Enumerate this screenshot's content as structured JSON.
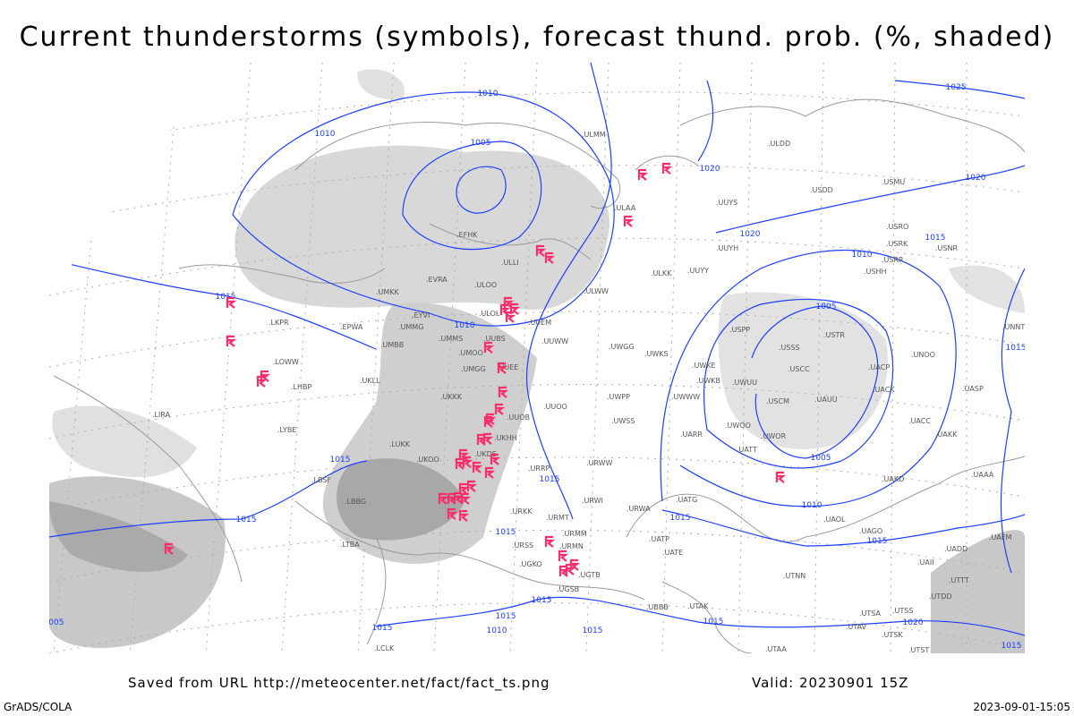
{
  "title": "Current thunderstorms (symbols), forecast thund. prob. (%, shaded)",
  "footer": {
    "saved_from": "Saved from URL http://meteocenter.net/fact/fact_ts.png",
    "valid": "Valid: 20230901 15Z",
    "software": "GrADS/COLA",
    "timestamp": "2023-09-01-15:05"
  },
  "colors": {
    "isobar": "#1f3fff",
    "thunderstorm_symbol": "#ff2d6a",
    "probability_shading": "#c8c8c8",
    "coastline": "#999999",
    "station_label": "#555555"
  },
  "legend": {
    "thunderstorm_icon": "thunderstorm-symbol-icon"
  },
  "isobar_labels": [
    "1010",
    "1010",
    "1005",
    "1025",
    "1020",
    "1020",
    "1020",
    "1015",
    "1010",
    "1010",
    "1015",
    "1005",
    "1005",
    "1010",
    "1015",
    "1015",
    "1015",
    "1015",
    "1015",
    "1015",
    "1015",
    "1015",
    "1010",
    "1015",
    "1015",
    "1015",
    "1020",
    "1015",
    "1005",
    "1015"
  ],
  "stations": [
    "EFHK",
    "ULMM",
    "ULOO",
    "ULLI",
    "ULAA",
    "ULDD",
    "UUYS",
    "USDD",
    "USMU",
    "UUYH",
    "USRO",
    "USRK",
    "USNR",
    "USRR",
    "USHH",
    "ULKK",
    "UUYY",
    "ULWW",
    "UUEM",
    "ULOL",
    "EVRA",
    "UMKK",
    "EYVI",
    "UMMG",
    "EPWA",
    "UMBB",
    "UMMS",
    "UMOO",
    "UUBS",
    "UUWW",
    "UWGG",
    "UWKS",
    "USPP",
    "USSS",
    "USTR",
    "UNOO",
    "UNNT",
    "UWKE",
    "UWKB",
    "UWUU",
    "USCC",
    "UACP",
    "UACK",
    "UASP",
    "UKLL",
    "UMGG",
    "UUEE",
    "UWWW",
    "USCM",
    "UAUU",
    "UKKK",
    "UUOO",
    "UWPP",
    "UWSS",
    "UUOB",
    "UACC",
    "UWOO",
    "UWOR",
    "UAKK",
    "UARR",
    "UATT",
    "UKHH",
    "URWW",
    "LUKK",
    "UKOO",
    "UKDE",
    "URRP",
    "URWI",
    "UATG",
    "UAKD",
    "UAAA",
    "URKK",
    "URMT",
    "URWA",
    "UAOL",
    "UATE",
    "UATP",
    "UAGO",
    "UAFM",
    "UADD",
    "URMM",
    "URSS",
    "URMN",
    "UGKO",
    "UGTB",
    "UGSB",
    "UBBB",
    "UTAK",
    "UTNN",
    "UAII",
    "UTTT",
    "UTDD",
    "UTSA",
    "UTSS",
    "UTAV",
    "UTSK",
    "UTST",
    "UTAA",
    "LIRA",
    "LKPR",
    "LOWW",
    "LHBP",
    "LYBE",
    "LBSF",
    "LBBG",
    "LTBA",
    "LCLK"
  ]
}
